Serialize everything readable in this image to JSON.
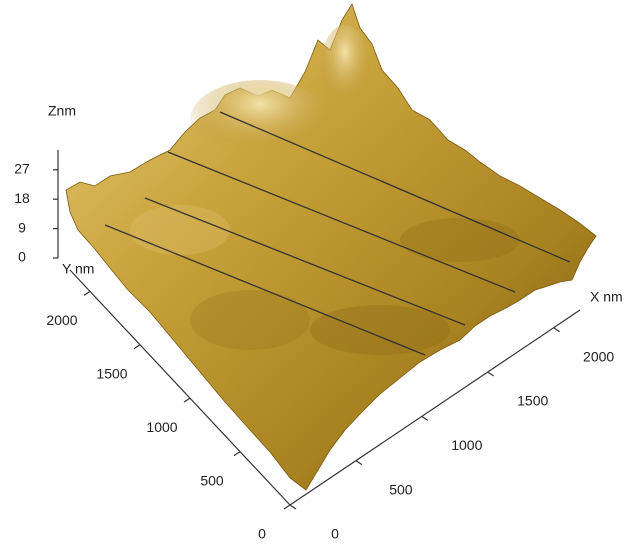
{
  "chart_data": {
    "type": "surface",
    "xlabel": "X nm",
    "ylabel": "Y nm",
    "zlabel": "Znm",
    "xlim": [
      0,
      2200
    ],
    "xticks": [
      0,
      500,
      1000,
      1500,
      2000
    ],
    "ylim": [
      0,
      2200
    ],
    "yticks": [
      0,
      500,
      1000,
      1500,
      2000
    ],
    "zlim": [
      0,
      30
    ],
    "zticks": [
      0,
      9,
      18,
      27
    ]
  }
}
